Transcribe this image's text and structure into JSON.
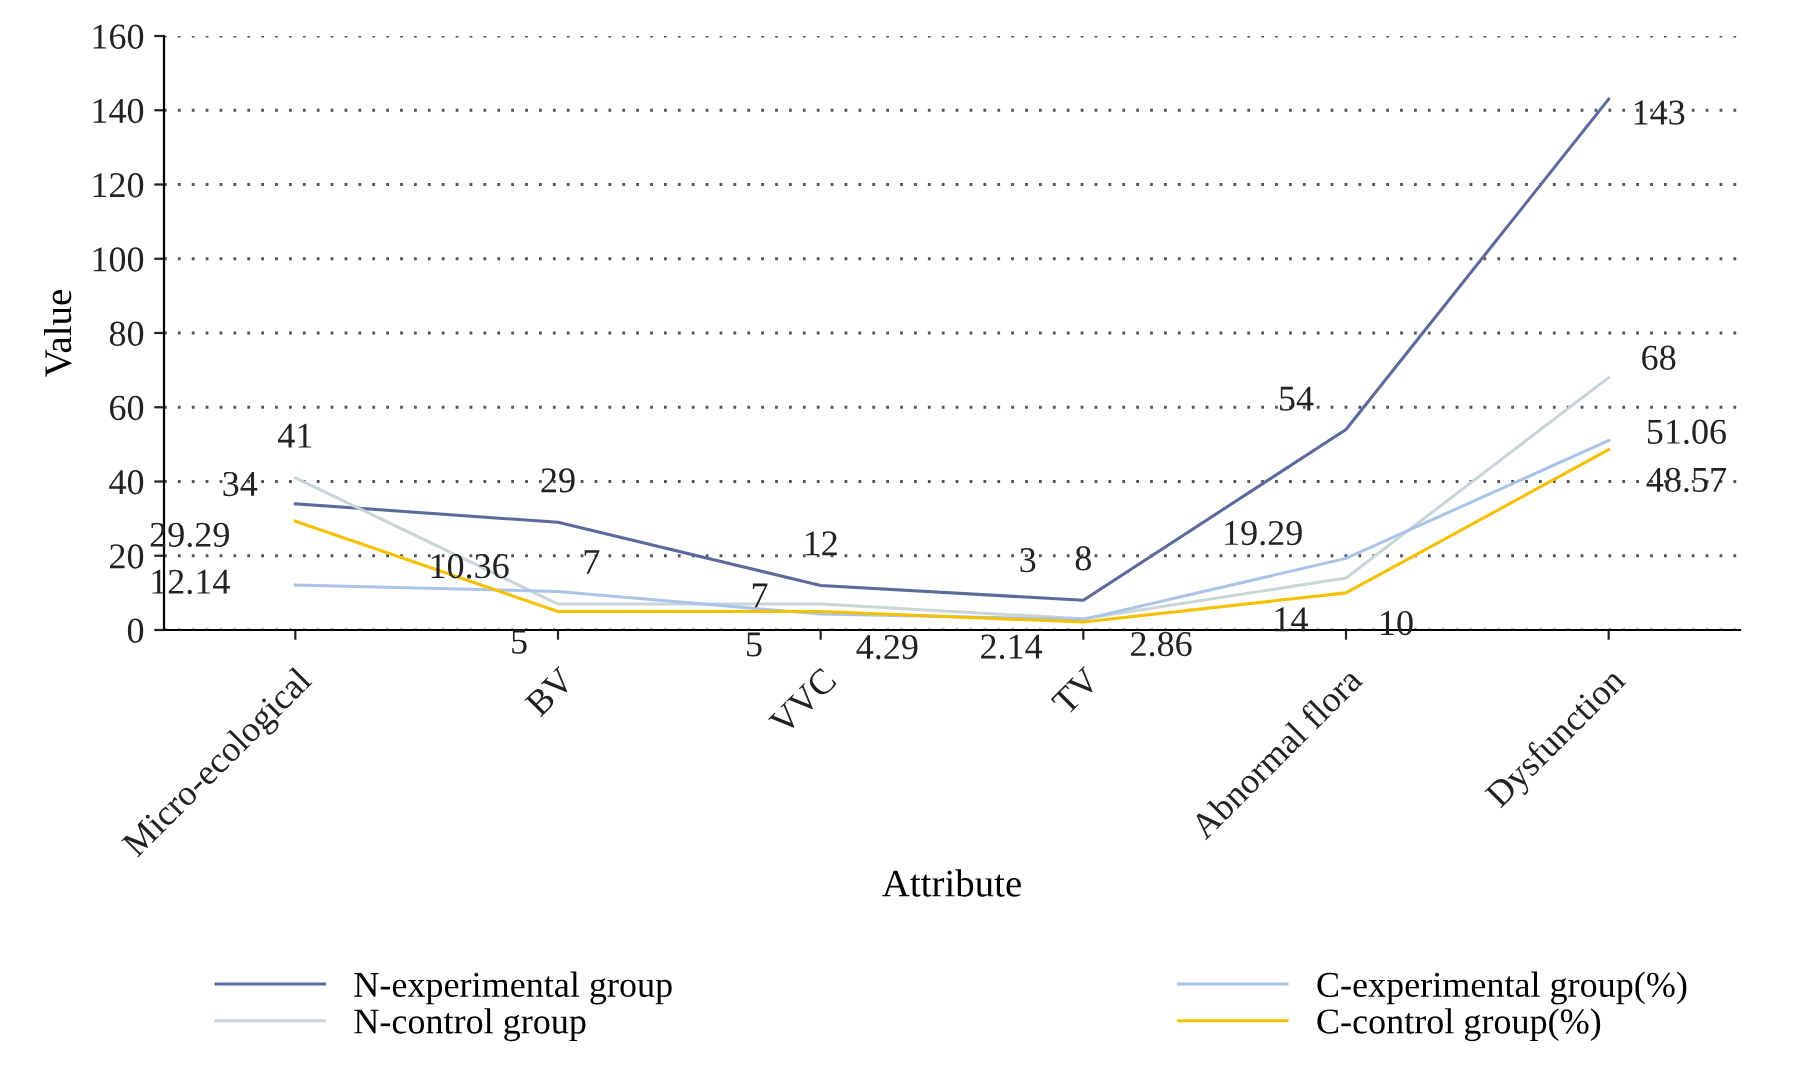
{
  "chart_data": {
    "type": "line",
    "xlabel": "Attribute",
    "ylabel": "Value",
    "categories": [
      "Micro-ecological",
      "BV",
      "VVC",
      "TV",
      "Abnormal flora",
      "Dysfunction"
    ],
    "series": [
      {
        "name": "N-experimental group",
        "color": "#5b6a9c",
        "values": [
          34,
          29,
          12,
          8,
          54,
          143
        ]
      },
      {
        "name": "N-control group",
        "color": "#c9d6d8",
        "values": [
          41,
          7,
          7,
          3,
          14,
          68
        ]
      },
      {
        "name": "C-experimental group(%)",
        "color": "#a9c4e8",
        "values": [
          12.14,
          10.36,
          4.29,
          2.86,
          19.29,
          51.06
        ]
      },
      {
        "name": "C-control group(%)",
        "color": "#f5c000",
        "values": [
          29.29,
          5,
          5,
          2.14,
          10,
          48.57
        ]
      }
    ],
    "ylim": [
      0,
      160
    ],
    "yticks": [
      0,
      20,
      40,
      60,
      80,
      100,
      120,
      140,
      160
    ],
    "grid": "y",
    "legend": "bottom",
    "data_labels": true,
    "marker": "none",
    "line_style": "solid"
  }
}
